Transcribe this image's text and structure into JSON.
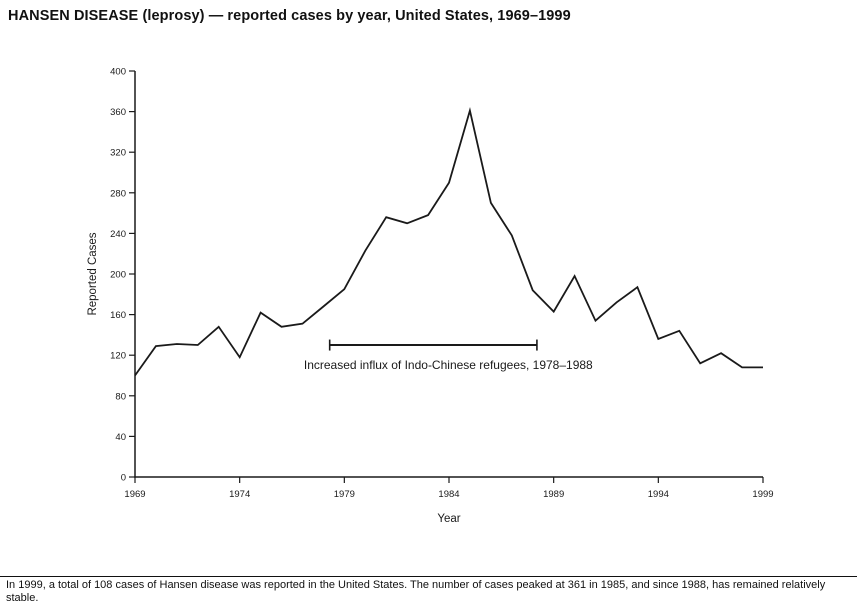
{
  "page": {
    "title": "HANSEN DISEASE (leprosy) — reported cases by year, United States, 1969–1999",
    "footnote": "In 1999, a total of 108 cases of Hansen disease was reported in the United States. The number of cases peaked at 361 in 1985, and since 1988, has remained relatively stable."
  },
  "chart_data": {
    "type": "line",
    "title": "HANSEN DISEASE (leprosy) — reported cases by year, United States, 1969–1999",
    "xlabel": "Year",
    "ylabel": "Reported Cases",
    "xlim": [
      1969,
      1999
    ],
    "ylim": [
      0,
      400
    ],
    "x_ticks": [
      1969,
      1974,
      1979,
      1984,
      1989,
      1994,
      1999
    ],
    "y_ticks": [
      0,
      40,
      80,
      120,
      160,
      200,
      240,
      280,
      320,
      360,
      400
    ],
    "grid": false,
    "legend": "none",
    "line_color": "#1a1a1a",
    "x": [
      1969,
      1970,
      1971,
      1972,
      1973,
      1974,
      1975,
      1976,
      1977,
      1978,
      1979,
      1980,
      1981,
      1982,
      1983,
      1984,
      1985,
      1986,
      1987,
      1988,
      1989,
      1990,
      1991,
      1992,
      1993,
      1994,
      1995,
      1996,
      1997,
      1998,
      1999
    ],
    "y": [
      100,
      129,
      131,
      130,
      148,
      118,
      162,
      148,
      151,
      168,
      185,
      223,
      256,
      250,
      258,
      290,
      361,
      270,
      238,
      184,
      163,
      198,
      154,
      172,
      187,
      136,
      144,
      112,
      122,
      108,
      108
    ],
    "annotation": {
      "label": "Increased influx of Indo-Chinese refugees, 1978–1988",
      "x_start": 1978.3,
      "x_end": 1988.2,
      "y": 130
    }
  }
}
